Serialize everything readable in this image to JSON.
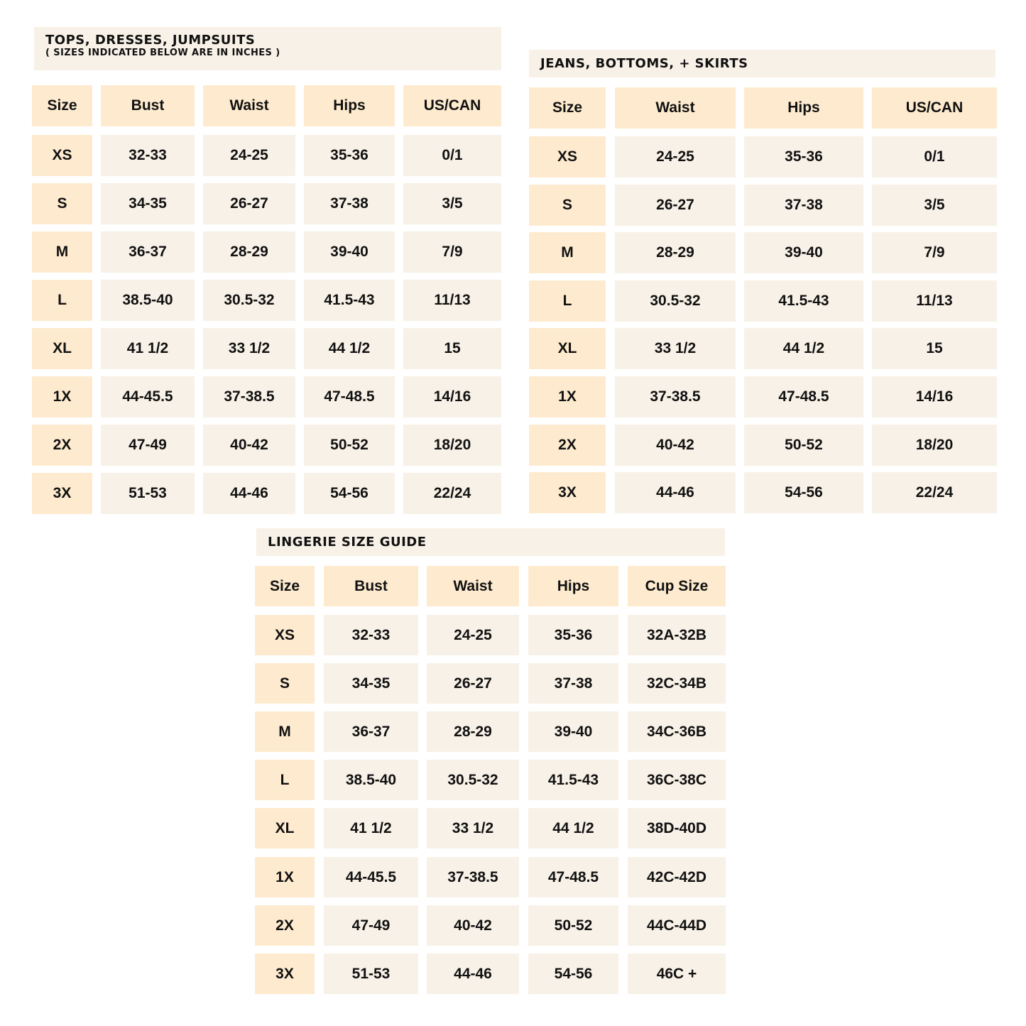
{
  "tables": [
    {
      "title": "TOPS, DRESSES, JUMPSUITS",
      "subtitle": "( SIZES INDICATED BELOW ARE IN INCHES )",
      "headers": [
        "Size",
        "Bust",
        "Waist",
        "Hips",
        "US/CAN"
      ],
      "rows": [
        [
          "XS",
          "32-33",
          "24-25",
          "35-36",
          "0/1"
        ],
        [
          "S",
          "34-35",
          "26-27",
          "37-38",
          "3/5"
        ],
        [
          "M",
          "36-37",
          "28-29",
          "39-40",
          "7/9"
        ],
        [
          "L",
          "38.5-40",
          "30.5-32",
          "41.5-43",
          "11/13"
        ],
        [
          "XL",
          "41 1/2",
          "33 1/2",
          "44 1/2",
          "15"
        ],
        [
          "1X",
          "44-45.5",
          "37-38.5",
          "47-48.5",
          "14/16"
        ],
        [
          "2X",
          "47-49",
          "40-42",
          "50-52",
          "18/20"
        ],
        [
          "3X",
          "51-53",
          "44-46",
          "54-56",
          "22/24"
        ]
      ]
    },
    {
      "title": "JEANS, BOTTOMS, + SKIRTS",
      "headers": [
        "Size",
        "Waist",
        "Hips",
        "US/CAN"
      ],
      "rows": [
        [
          "XS",
          "24-25",
          "35-36",
          "0/1"
        ],
        [
          "S",
          "26-27",
          "37-38",
          "3/5"
        ],
        [
          "M",
          "28-29",
          "39-40",
          "7/9"
        ],
        [
          "L",
          "30.5-32",
          "41.5-43",
          "11/13"
        ],
        [
          "XL",
          "33 1/2",
          "44 1/2",
          "15"
        ],
        [
          "1X",
          "37-38.5",
          "47-48.5",
          "14/16"
        ],
        [
          "2X",
          "40-42",
          "50-52",
          "18/20"
        ],
        [
          "3X",
          "44-46",
          "54-56",
          "22/24"
        ]
      ]
    },
    {
      "title": "LINGERIE SIZE GUIDE",
      "headers": [
        "Size",
        "Bust",
        "Waist",
        "Hips",
        "Cup Size"
      ],
      "rows": [
        [
          "XS",
          "32-33",
          "24-25",
          "35-36",
          "32A-32B"
        ],
        [
          "S",
          "34-35",
          "26-27",
          "37-38",
          "32C-34B"
        ],
        [
          "M",
          "36-37",
          "28-29",
          "39-40",
          "34C-36B"
        ],
        [
          "L",
          "38.5-40",
          "30.5-32",
          "41.5-43",
          "36C-38C"
        ],
        [
          "XL",
          "41 1/2",
          "33 1/2",
          "44 1/2",
          "38D-40D"
        ],
        [
          "1X",
          "44-45.5",
          "37-38.5",
          "47-48.5",
          "42C-42D"
        ],
        [
          "2X",
          "47-49",
          "40-42",
          "50-52",
          "44C-44D"
        ],
        [
          "3X",
          "51-53",
          "44-46",
          "54-56",
          "46C +"
        ]
      ]
    }
  ],
  "colors": {
    "header_fill": "#feebcf",
    "cell_fill": "#f8f1e7",
    "text": "#111111"
  }
}
